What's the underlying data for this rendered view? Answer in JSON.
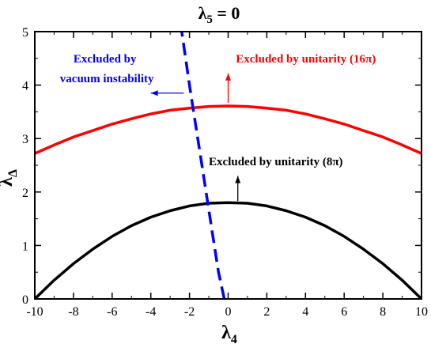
{
  "chart_data": {
    "type": "line",
    "title_symbol": "λ",
    "title_sub": "5",
    "title_rest": " = 0",
    "xlabel_symbol": "λ",
    "xlabel_sub": "4",
    "ylabel_symbol": "λ",
    "ylabel_sub": "Δ",
    "xlim": [
      -10,
      10
    ],
    "ylim": [
      0,
      5
    ],
    "xticks": [
      "-10",
      "-8",
      "-6",
      "-4",
      "-2",
      "0",
      "2",
      "4",
      "6",
      "8",
      "10"
    ],
    "xtick_values": [
      -10,
      -8,
      -6,
      -4,
      -2,
      0,
      2,
      4,
      6,
      8,
      10
    ],
    "yticks": [
      "0",
      "1",
      "2",
      "3",
      "4",
      "5"
    ],
    "ytick_values": [
      0,
      1,
      2,
      3,
      4,
      5
    ],
    "grid": false,
    "series": [
      {
        "color": "#ff0000",
        "style": "solid",
        "x": [
          -10,
          -9,
          -8,
          -7,
          -6,
          -5,
          -4,
          -3,
          -2,
          -1,
          0,
          1,
          2,
          3,
          4,
          5,
          6,
          7,
          8,
          9,
          10
        ],
        "y": [
          2.72,
          2.88,
          3.03,
          3.15,
          3.27,
          3.37,
          3.46,
          3.53,
          3.57,
          3.6,
          3.61,
          3.6,
          3.57,
          3.53,
          3.46,
          3.37,
          3.27,
          3.15,
          3.03,
          2.88,
          2.72
        ]
      },
      {
        "color": "#000000",
        "style": "solid",
        "x": [
          -10,
          -9,
          -8,
          -7,
          -6,
          -5,
          -4,
          -3,
          -2,
          -1,
          0,
          1,
          2,
          3,
          4,
          5,
          6,
          7,
          8,
          9,
          10
        ],
        "y": [
          0.0,
          0.35,
          0.66,
          0.93,
          1.17,
          1.37,
          1.53,
          1.65,
          1.74,
          1.79,
          1.8,
          1.79,
          1.74,
          1.65,
          1.53,
          1.37,
          1.17,
          0.93,
          0.66,
          0.35,
          0.0
        ]
      },
      {
        "color": "#0000ff",
        "style": "dashed",
        "x": [
          -0.2,
          -0.5,
          -0.8,
          -1.1,
          -1.4,
          -1.7,
          -2.0,
          -2.2,
          -2.4
        ],
        "y": [
          0.0,
          0.5,
          1.2,
          1.9,
          2.6,
          3.3,
          4.0,
          4.5,
          5.0
        ]
      }
    ],
    "annotations": [
      {
        "text": "Excluded by unitarity (16π)",
        "color": "#ff0000",
        "x": 0.4,
        "y": 4.42,
        "align": "start"
      },
      {
        "text": "Excluded by unitarity (8π)",
        "color": "#000000",
        "x": -1.0,
        "y": 2.5,
        "align": "start"
      },
      {
        "text": "Excluded by",
        "color": "#0000ff",
        "x": -8.0,
        "y": 4.42,
        "align": "start"
      },
      {
        "text": "vacuum instability",
        "color": "#0000ff",
        "x": -8.7,
        "y": 4.05,
        "align": "start"
      }
    ],
    "arrows": [
      {
        "color": "#ff0000",
        "x1": 0.0,
        "y1": 3.67,
        "x2": 0.0,
        "y2": 4.22
      },
      {
        "color": "#000000",
        "x1": 0.5,
        "y1": 1.83,
        "x2": 0.5,
        "y2": 2.3
      },
      {
        "color": "#0000ff",
        "x1": -2.3,
        "y1": 3.85,
        "x2": -4.0,
        "y2": 3.85
      }
    ]
  }
}
